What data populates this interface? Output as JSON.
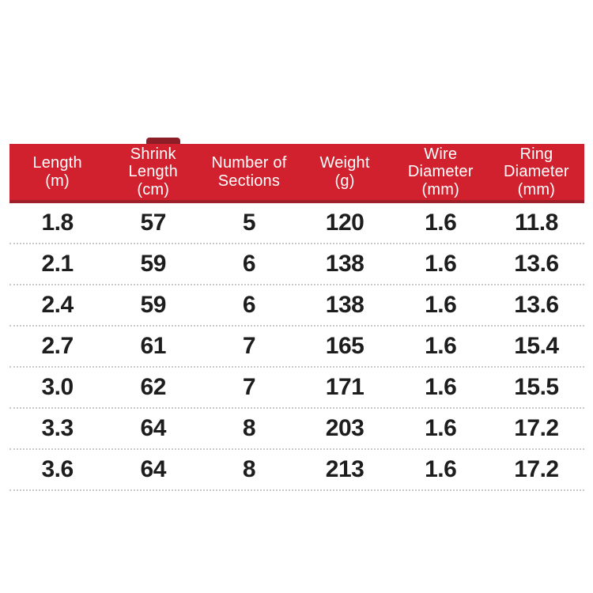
{
  "colors": {
    "background": "#ffffff",
    "header_bg": "#d2212e",
    "header_border": "#9e1f29",
    "header_text": "#ffffff",
    "cell_text": "#1d1d1d",
    "separator": "#c9c9c9"
  },
  "table": {
    "columns": [
      {
        "id": "length",
        "label": "Length\n(m)"
      },
      {
        "id": "shrink-length",
        "label": "Shrink\nLength\n(cm)"
      },
      {
        "id": "sections",
        "label": "Number of\nSections"
      },
      {
        "id": "weight",
        "label": "Weight\n(g)"
      },
      {
        "id": "wire-diameter",
        "label": "Wire\nDiameter\n(mm)"
      },
      {
        "id": "ring-diameter",
        "label": "Ring\nDiameter\n(mm)"
      }
    ],
    "rows": [
      [
        "1.8",
        "57",
        "5",
        "120",
        "1.6",
        "11.8"
      ],
      [
        "2.1",
        "59",
        "6",
        "138",
        "1.6",
        "13.6"
      ],
      [
        "2.4",
        "59",
        "6",
        "138",
        "1.6",
        "13.6"
      ],
      [
        "2.7",
        "61",
        "7",
        "165",
        "1.6",
        "15.4"
      ],
      [
        "3.0",
        "62",
        "7",
        "171",
        "1.6",
        "15.5"
      ],
      [
        "3.3",
        "64",
        "8",
        "203",
        "1.6",
        "17.2"
      ],
      [
        "3.6",
        "64",
        "8",
        "213",
        "1.6",
        "17.2"
      ]
    ]
  },
  "chart_data": {
    "type": "table",
    "title": "",
    "columns": [
      "Length (m)",
      "Shrink Length (cm)",
      "Number of Sections",
      "Weight (g)",
      "Wire Diameter (mm)",
      "Ring Diameter (mm)"
    ],
    "rows": [
      [
        1.8,
        57,
        5,
        120,
        1.6,
        11.8
      ],
      [
        2.1,
        59,
        6,
        138,
        1.6,
        13.6
      ],
      [
        2.4,
        59,
        6,
        138,
        1.6,
        13.6
      ],
      [
        2.7,
        61,
        7,
        165,
        1.6,
        15.4
      ],
      [
        3.0,
        62,
        7,
        171,
        1.6,
        15.5
      ],
      [
        3.3,
        64,
        8,
        203,
        1.6,
        17.2
      ],
      [
        3.6,
        64,
        8,
        213,
        1.6,
        17.2
      ]
    ],
    "layout_hints": {
      "header_style": "red band, white text",
      "row_separators": "dotted light gray",
      "grid": "horizontal only"
    }
  }
}
